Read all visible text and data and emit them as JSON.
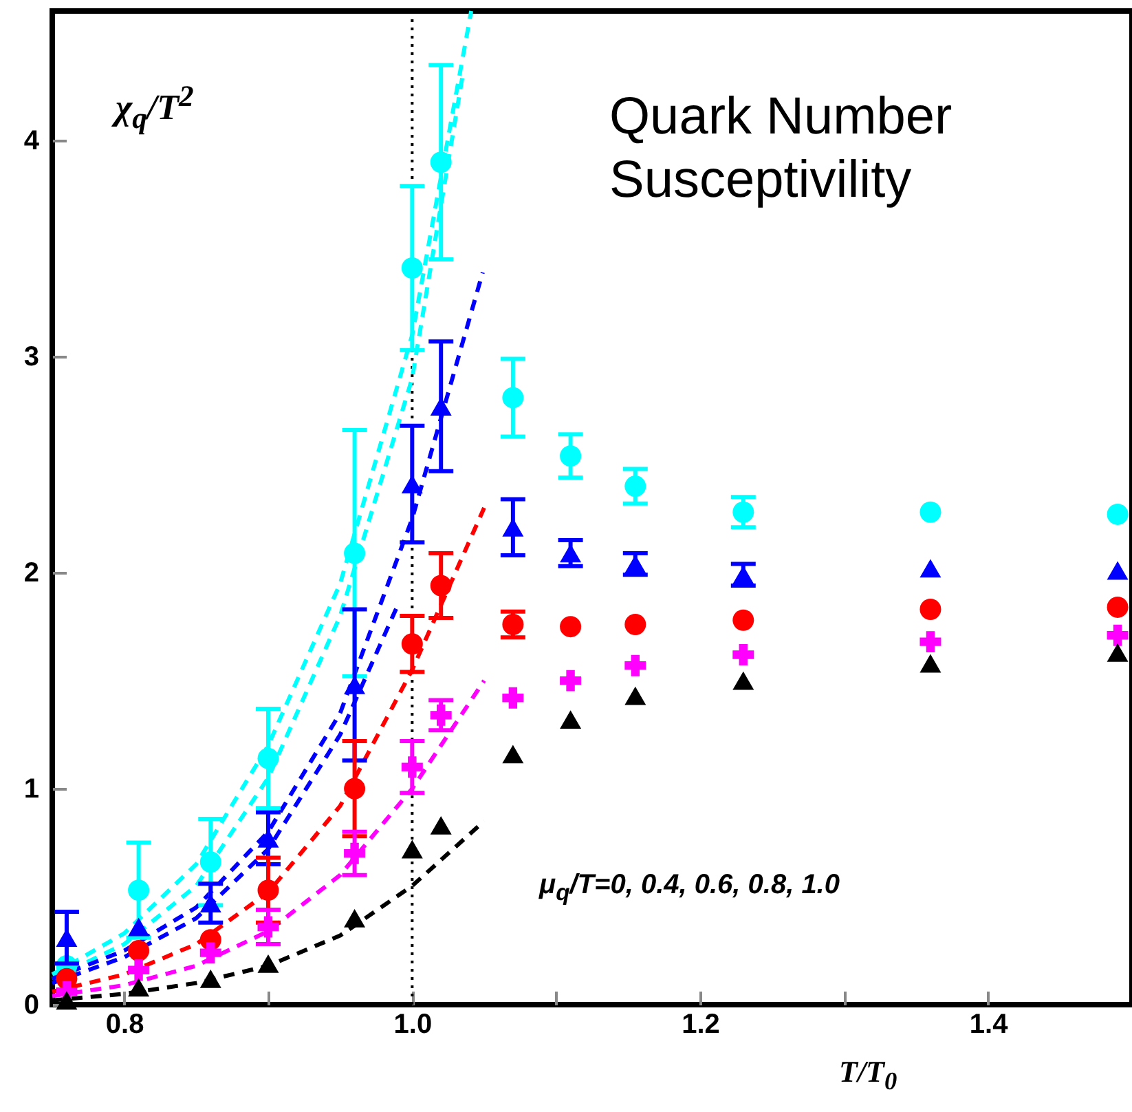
{
  "chart_data": {
    "type": "scatter",
    "title": "Quark Number Susceptivility",
    "xlabel": "T/T$_{0}$",
    "ylabel": "χ$_{q}$/T$^{2}$",
    "annotations": [
      "μ$_{q}$/T=0, 0.4, 0.6, 0.8, 1.0"
    ],
    "x": [
      0.76,
      0.81,
      0.86,
      0.9,
      0.96,
      1.0,
      1.02,
      1.07,
      1.11,
      1.155,
      1.23,
      1.36,
      1.49
    ],
    "xlim": [
      0.75,
      1.5
    ],
    "xticks": [
      {
        "value": 0.8,
        "label": "0.8"
      },
      {
        "value": 0.9,
        "label": null
      },
      {
        "value": 1.0,
        "label": "1.0"
      },
      {
        "value": 1.1,
        "label": null
      },
      {
        "value": 1.2,
        "label": "1.2"
      },
      {
        "value": 1.3,
        "label": null
      },
      {
        "value": 1.4,
        "label": "1.4"
      }
    ],
    "ylim": [
      0,
      4.6
    ],
    "yticks": [
      0,
      1,
      2,
      3,
      4
    ],
    "ref_lines": [
      {
        "axis": "x",
        "value": 1.0,
        "color": "#000000",
        "line_style": "dotted"
      }
    ],
    "series": [
      {
        "type": "line",
        "color": "#00ffff",
        "line_style": "dashed",
        "marker": "none",
        "x": [
          0.75,
          0.8,
          0.85,
          0.9,
          0.95,
          1.0,
          1.041
        ],
        "values": [
          0.14,
          0.33,
          0.65,
          1.2,
          1.95,
          3.1,
          4.6
        ]
      },
      {
        "type": "line",
        "color": "#00ffff",
        "line_style": "dashed",
        "marker": "none",
        "x": [
          0.75,
          0.8,
          0.85,
          0.9,
          0.95,
          1.0,
          1.035
        ],
        "values": [
          0.12,
          0.28,
          0.55,
          1.05,
          1.8,
          2.9,
          4.3
        ]
      },
      {
        "type": "line",
        "color": "#0000ff",
        "line_style": "dashed",
        "marker": "none",
        "x": [
          0.75,
          0.8,
          0.85,
          0.9,
          0.95,
          1.0,
          1.049
        ],
        "values": [
          0.12,
          0.25,
          0.45,
          0.8,
          1.35,
          2.25,
          3.39
        ]
      },
      {
        "type": "line",
        "color": "#0000ff",
        "line_style": "dashed",
        "marker": "none",
        "x": [
          0.75,
          0.8,
          0.85,
          0.9,
          0.95,
          0.99
        ],
        "values": [
          0.1,
          0.22,
          0.4,
          0.72,
          1.25,
          1.85
        ]
      },
      {
        "type": "line",
        "color": "#ff0000",
        "line_style": "dashed",
        "marker": "none",
        "x": [
          0.75,
          0.8,
          0.85,
          0.9,
          0.95,
          1.0,
          1.05
        ],
        "values": [
          0.06,
          0.14,
          0.28,
          0.52,
          0.92,
          1.55,
          2.3
        ]
      },
      {
        "type": "line",
        "color": "#ff00ff",
        "line_style": "dashed",
        "marker": "none",
        "x": [
          0.75,
          0.8,
          0.85,
          0.9,
          0.95,
          1.0,
          1.05
        ],
        "values": [
          0.04,
          0.09,
          0.18,
          0.34,
          0.6,
          1.0,
          1.5
        ]
      },
      {
        "type": "line",
        "color": "#000000",
        "line_style": "dashed",
        "marker": "none",
        "x": [
          0.75,
          0.8,
          0.85,
          0.9,
          0.95,
          1.0,
          1.05
        ],
        "values": [
          0.02,
          0.05,
          0.1,
          0.18,
          0.32,
          0.55,
          0.85
        ]
      },
      {
        "type": "scatter",
        "color": "#00ffff",
        "marker": "circle",
        "values": [
          0.18,
          0.53,
          0.66,
          1.14,
          2.09,
          3.41,
          3.9,
          2.81,
          2.54,
          2.4,
          2.28,
          2.28,
          2.27
        ],
        "errors": [
          null,
          0.22,
          0.2,
          0.23,
          0.57,
          0.38,
          0.45,
          0.18,
          0.1,
          0.08,
          0.07,
          null,
          null
        ]
      },
      {
        "type": "scatter",
        "color": "#0000ff",
        "marker": "triangle",
        "values": [
          0.31,
          0.36,
          0.47,
          0.77,
          1.48,
          2.41,
          2.77,
          2.21,
          2.09,
          2.04,
          1.99,
          2.02,
          2.01
        ],
        "errors": [
          0.12,
          null,
          0.09,
          0.12,
          0.35,
          0.27,
          0.3,
          0.13,
          0.06,
          0.05,
          0.05,
          null,
          null
        ]
      },
      {
        "type": "scatter",
        "color": "#ff0000",
        "marker": "circle",
        "values": [
          0.12,
          0.25,
          0.3,
          0.53,
          1.0,
          1.67,
          1.94,
          1.76,
          1.75,
          1.76,
          1.78,
          1.83,
          1.84
        ],
        "errors": [
          null,
          null,
          null,
          0.15,
          0.22,
          0.13,
          0.15,
          0.06,
          null,
          null,
          null,
          null,
          null
        ]
      },
      {
        "type": "scatter",
        "color": "#ff00ff",
        "marker": "cross",
        "values": [
          0.06,
          0.16,
          0.24,
          0.36,
          0.7,
          1.1,
          1.34,
          1.42,
          1.5,
          1.57,
          1.62,
          1.68,
          1.71
        ],
        "errors": [
          null,
          null,
          null,
          0.08,
          0.1,
          0.12,
          0.07,
          null,
          null,
          null,
          null,
          null,
          null
        ]
      },
      {
        "type": "scatter",
        "color": "#000000",
        "marker": "triangle",
        "values": [
          0.02,
          0.08,
          0.12,
          0.19,
          0.4,
          0.72,
          0.83,
          1.16,
          1.32,
          1.43,
          1.5,
          1.58,
          1.63
        ]
      }
    ]
  }
}
